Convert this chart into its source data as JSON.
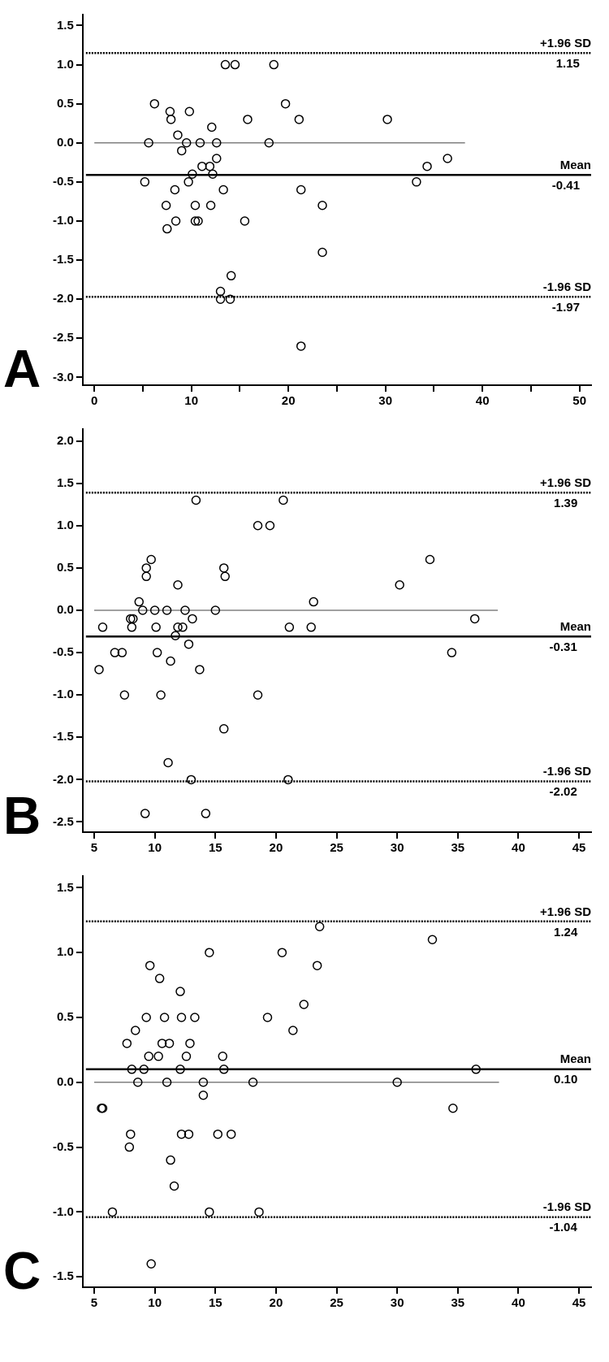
{
  "chart_data": [
    {
      "type": "scatter",
      "title": "A",
      "grid": false,
      "legend": false,
      "xlim": [
        -1.2,
        51.2
      ],
      "xticks": [
        0,
        {
          "value": 5,
          "label": null
        },
        10,
        {
          "value": 15,
          "label": null
        },
        20,
        {
          "value": 25,
          "label": null
        },
        30,
        {
          "value": 35,
          "label": null
        },
        40,
        {
          "value": 45,
          "label": null
        },
        50
      ],
      "ylim": [
        -3.1,
        1.64
      ],
      "yticks": [
        1.5,
        {
          "value": 1,
          "label": "1.0"
        },
        0.5,
        {
          "value": 0,
          "label": "0.0"
        },
        -0.5,
        {
          "value": -1,
          "label": "-1.0"
        },
        -1.5,
        {
          "value": -2,
          "label": "-2.0"
        },
        -2.5,
        {
          "value": -3,
          "label": "-3.0"
        }
      ],
      "series": [
        {
          "color": "#000000",
          "marker": "circle",
          "x": [
            13.5,
            14.5,
            18.5,
            6.2,
            19.7,
            7.8,
            9.8,
            7.9,
            15.8,
            21.1,
            30.2,
            12.1,
            8.6,
            5.6,
            9.5,
            10.9,
            12.6,
            18.0,
            9.0,
            12.6,
            36.4,
            11.1,
            11.9,
            34.3,
            10.1,
            12.2,
            5.2,
            9.7,
            33.2,
            8.3,
            13.3,
            21.3,
            7.4,
            10.4,
            12.0,
            23.5,
            8.4,
            10.4,
            10.7,
            15.5,
            7.5,
            23.5,
            14.1,
            13.0,
            13.0,
            14.0,
            21.3
          ],
          "values": [
            1.0,
            1.0,
            1.0,
            0.5,
            0.5,
            0.4,
            0.4,
            0.3,
            0.3,
            0.3,
            0.3,
            0.2,
            0.1,
            0,
            0,
            0,
            0,
            0,
            -0.1,
            -0.2,
            -0.2,
            -0.3,
            -0.3,
            -0.3,
            -0.4,
            -0.4,
            -0.5,
            -0.5,
            -0.5,
            -0.6,
            -0.6,
            -0.6,
            -0.8,
            -0.8,
            -0.8,
            -0.8,
            -1.0,
            -1.0,
            -1.0,
            -1.0,
            -1.1,
            -1.4,
            -1.7,
            -1.9,
            -2.0,
            -2.0,
            -2.6
          ]
        },
        {
          "type": "line",
          "marker": "none",
          "color": "#808080",
          "x": [
            0,
            38.2
          ],
          "values": [
            0,
            0
          ]
        }
      ],
      "ref_lines": [
        {
          "axis": "y",
          "value": 1.15,
          "label": "+1.96 SD",
          "line_style": "dotted",
          "color": "#000000"
        },
        {
          "axis": "y",
          "value": -0.41,
          "label": "Mean",
          "line_style": "solid",
          "color": "#000000"
        },
        {
          "axis": "y",
          "value": -1.97,
          "label": "-1.96 SD",
          "line_style": "dotted",
          "color": "#000000"
        }
      ],
      "annotations": [
        {
          "text": "1.15",
          "x": 48.8,
          "y": 1.15
        },
        {
          "text": "-0.41",
          "x": 48.6,
          "y": -0.41
        },
        {
          "text": "-1.97",
          "x": 48.6,
          "y": -1.97
        }
      ]
    },
    {
      "type": "scatter",
      "title": "B",
      "grid": false,
      "legend": false,
      "xlim": [
        4.05,
        46
      ],
      "xticks": [
        5,
        10,
        15,
        20,
        25,
        30,
        35,
        40,
        45
      ],
      "ylim": [
        -2.62,
        2.14
      ],
      "yticks": [
        {
          "value": 2,
          "label": "2.0"
        },
        1.5,
        {
          "value": 1,
          "label": "1.0"
        },
        0.5,
        {
          "value": 0,
          "label": "0.0"
        },
        -0.5,
        {
          "value": -1,
          "label": "-1.0"
        },
        -1.5,
        {
          "value": -2,
          "label": "-2.0"
        },
        -2.5
      ],
      "series": [
        {
          "color": "#000000",
          "marker": "circle",
          "x": [
            13.4,
            20.6,
            18.5,
            19.5,
            9.7,
            32.7,
            9.3,
            15.7,
            9.3,
            15.8,
            11.9,
            30.2,
            8.7,
            23.1,
            9.0,
            10.0,
            11.0,
            12.5,
            15.0,
            8.0,
            8.2,
            13.1,
            36.4,
            5.7,
            8.1,
            10.1,
            11.9,
            12.3,
            21.1,
            22.9,
            11.7,
            12.8,
            6.7,
            7.3,
            10.2,
            34.5,
            11.3,
            5.4,
            13.7,
            7.5,
            10.5,
            18.5,
            15.7,
            11.1,
            13.0,
            21.0,
            9.2,
            14.2
          ],
          "values": [
            1.3,
            1.3,
            1.0,
            1.0,
            0.6,
            0.6,
            0.5,
            0.5,
            0.4,
            0.4,
            0.3,
            0.3,
            0.1,
            0.1,
            0,
            0,
            0,
            0,
            0,
            -0.1,
            -0.1,
            -0.1,
            -0.1,
            -0.2,
            -0.2,
            -0.2,
            -0.2,
            -0.2,
            -0.2,
            -0.2,
            -0.3,
            -0.4,
            -0.5,
            -0.5,
            -0.5,
            -0.5,
            -0.6,
            -0.7,
            -0.7,
            -1.0,
            -1.0,
            -1.0,
            -1.4,
            -1.8,
            -2.0,
            -2.0,
            -2.4,
            -2.4
          ]
        },
        {
          "type": "line",
          "marker": "none",
          "color": "#808080",
          "x": [
            5,
            38.3
          ],
          "values": [
            0,
            0
          ]
        }
      ],
      "ref_lines": [
        {
          "axis": "y",
          "value": 1.39,
          "label": "+1.96 SD",
          "line_style": "dotted",
          "color": "#000000"
        },
        {
          "axis": "y",
          "value": -0.31,
          "label": "Mean",
          "line_style": "solid",
          "color": "#000000"
        },
        {
          "axis": "y",
          "value": -2.02,
          "label": "-1.96 SD",
          "line_style": "dotted",
          "color": "#000000"
        }
      ],
      "annotations": [
        {
          "text": "1.39",
          "x": 43.9,
          "y": 1.39
        },
        {
          "text": "-0.31",
          "x": 43.7,
          "y": -0.31
        },
        {
          "text": "-2.02",
          "x": 43.7,
          "y": -2.02
        }
      ]
    },
    {
      "type": "scatter",
      "title": "C",
      "grid": false,
      "legend": false,
      "xlim": [
        4.05,
        46
      ],
      "xticks": [
        5,
        10,
        15,
        20,
        25,
        30,
        35,
        40,
        45
      ],
      "ylim": [
        -1.58,
        1.59
      ],
      "yticks": [
        1.5,
        {
          "value": 1,
          "label": "1.0"
        },
        0.5,
        {
          "value": 0,
          "label": "0.0"
        },
        -0.5,
        {
          "value": -1,
          "label": "-1.0"
        },
        -1.5
      ],
      "series": [
        {
          "color": "#000000",
          "marker": "circle",
          "x": [
            23.6,
            32.9,
            14.5,
            20.5,
            9.6,
            23.4,
            10.4,
            12.1,
            22.3,
            9.3,
            10.8,
            12.2,
            13.3,
            19.3,
            8.4,
            21.4,
            7.7,
            10.6,
            11.2,
            12.9,
            9.5,
            10.3,
            12.6,
            15.6,
            8.1,
            9.1,
            12.1,
            15.7,
            36.5,
            8.6,
            11.0,
            14.0,
            18.1,
            30.0,
            14.0,
            5.6,
            5.7,
            34.6,
            8.0,
            12.2,
            12.8,
            15.2,
            16.3,
            7.9,
            11.3,
            11.6,
            6.5,
            14.5,
            18.6,
            9.7
          ],
          "values": [
            1.2,
            1.1,
            1.0,
            1.0,
            0.9,
            0.9,
            0.8,
            0.7,
            0.6,
            0.5,
            0.5,
            0.5,
            0.5,
            0.5,
            0.4,
            0.4,
            0.3,
            0.3,
            0.3,
            0.3,
            0.2,
            0.2,
            0.2,
            0.2,
            0.1,
            0.1,
            0.1,
            0.1,
            0.1,
            0,
            0,
            0,
            0,
            0,
            -0.1,
            -0.2,
            -0.2,
            -0.2,
            -0.4,
            -0.4,
            -0.4,
            -0.4,
            -0.4,
            -0.5,
            -0.6,
            -0.8,
            -1.0,
            -1.0,
            -1.0,
            -1.4
          ]
        },
        {
          "type": "line",
          "marker": "none",
          "color": "#808080",
          "x": [
            5,
            38.4
          ],
          "values": [
            0,
            0
          ]
        }
      ],
      "ref_lines": [
        {
          "axis": "y",
          "value": 1.24,
          "label": "+1.96 SD",
          "line_style": "dotted",
          "color": "#000000"
        },
        {
          "axis": "y",
          "value": 0.1,
          "label": "Mean",
          "line_style": "solid",
          "color": "#000000"
        },
        {
          "axis": "y",
          "value": -1.04,
          "label": "-1.96 SD",
          "line_style": "dotted",
          "color": "#000000"
        }
      ],
      "annotations": [
        {
          "text": "1.24",
          "x": 43.9,
          "y": 1.24
        },
        {
          "text": "0.10",
          "x": 43.9,
          "y": 0.1
        },
        {
          "text": "-1.04",
          "x": 43.7,
          "y": -1.04
        }
      ]
    }
  ]
}
